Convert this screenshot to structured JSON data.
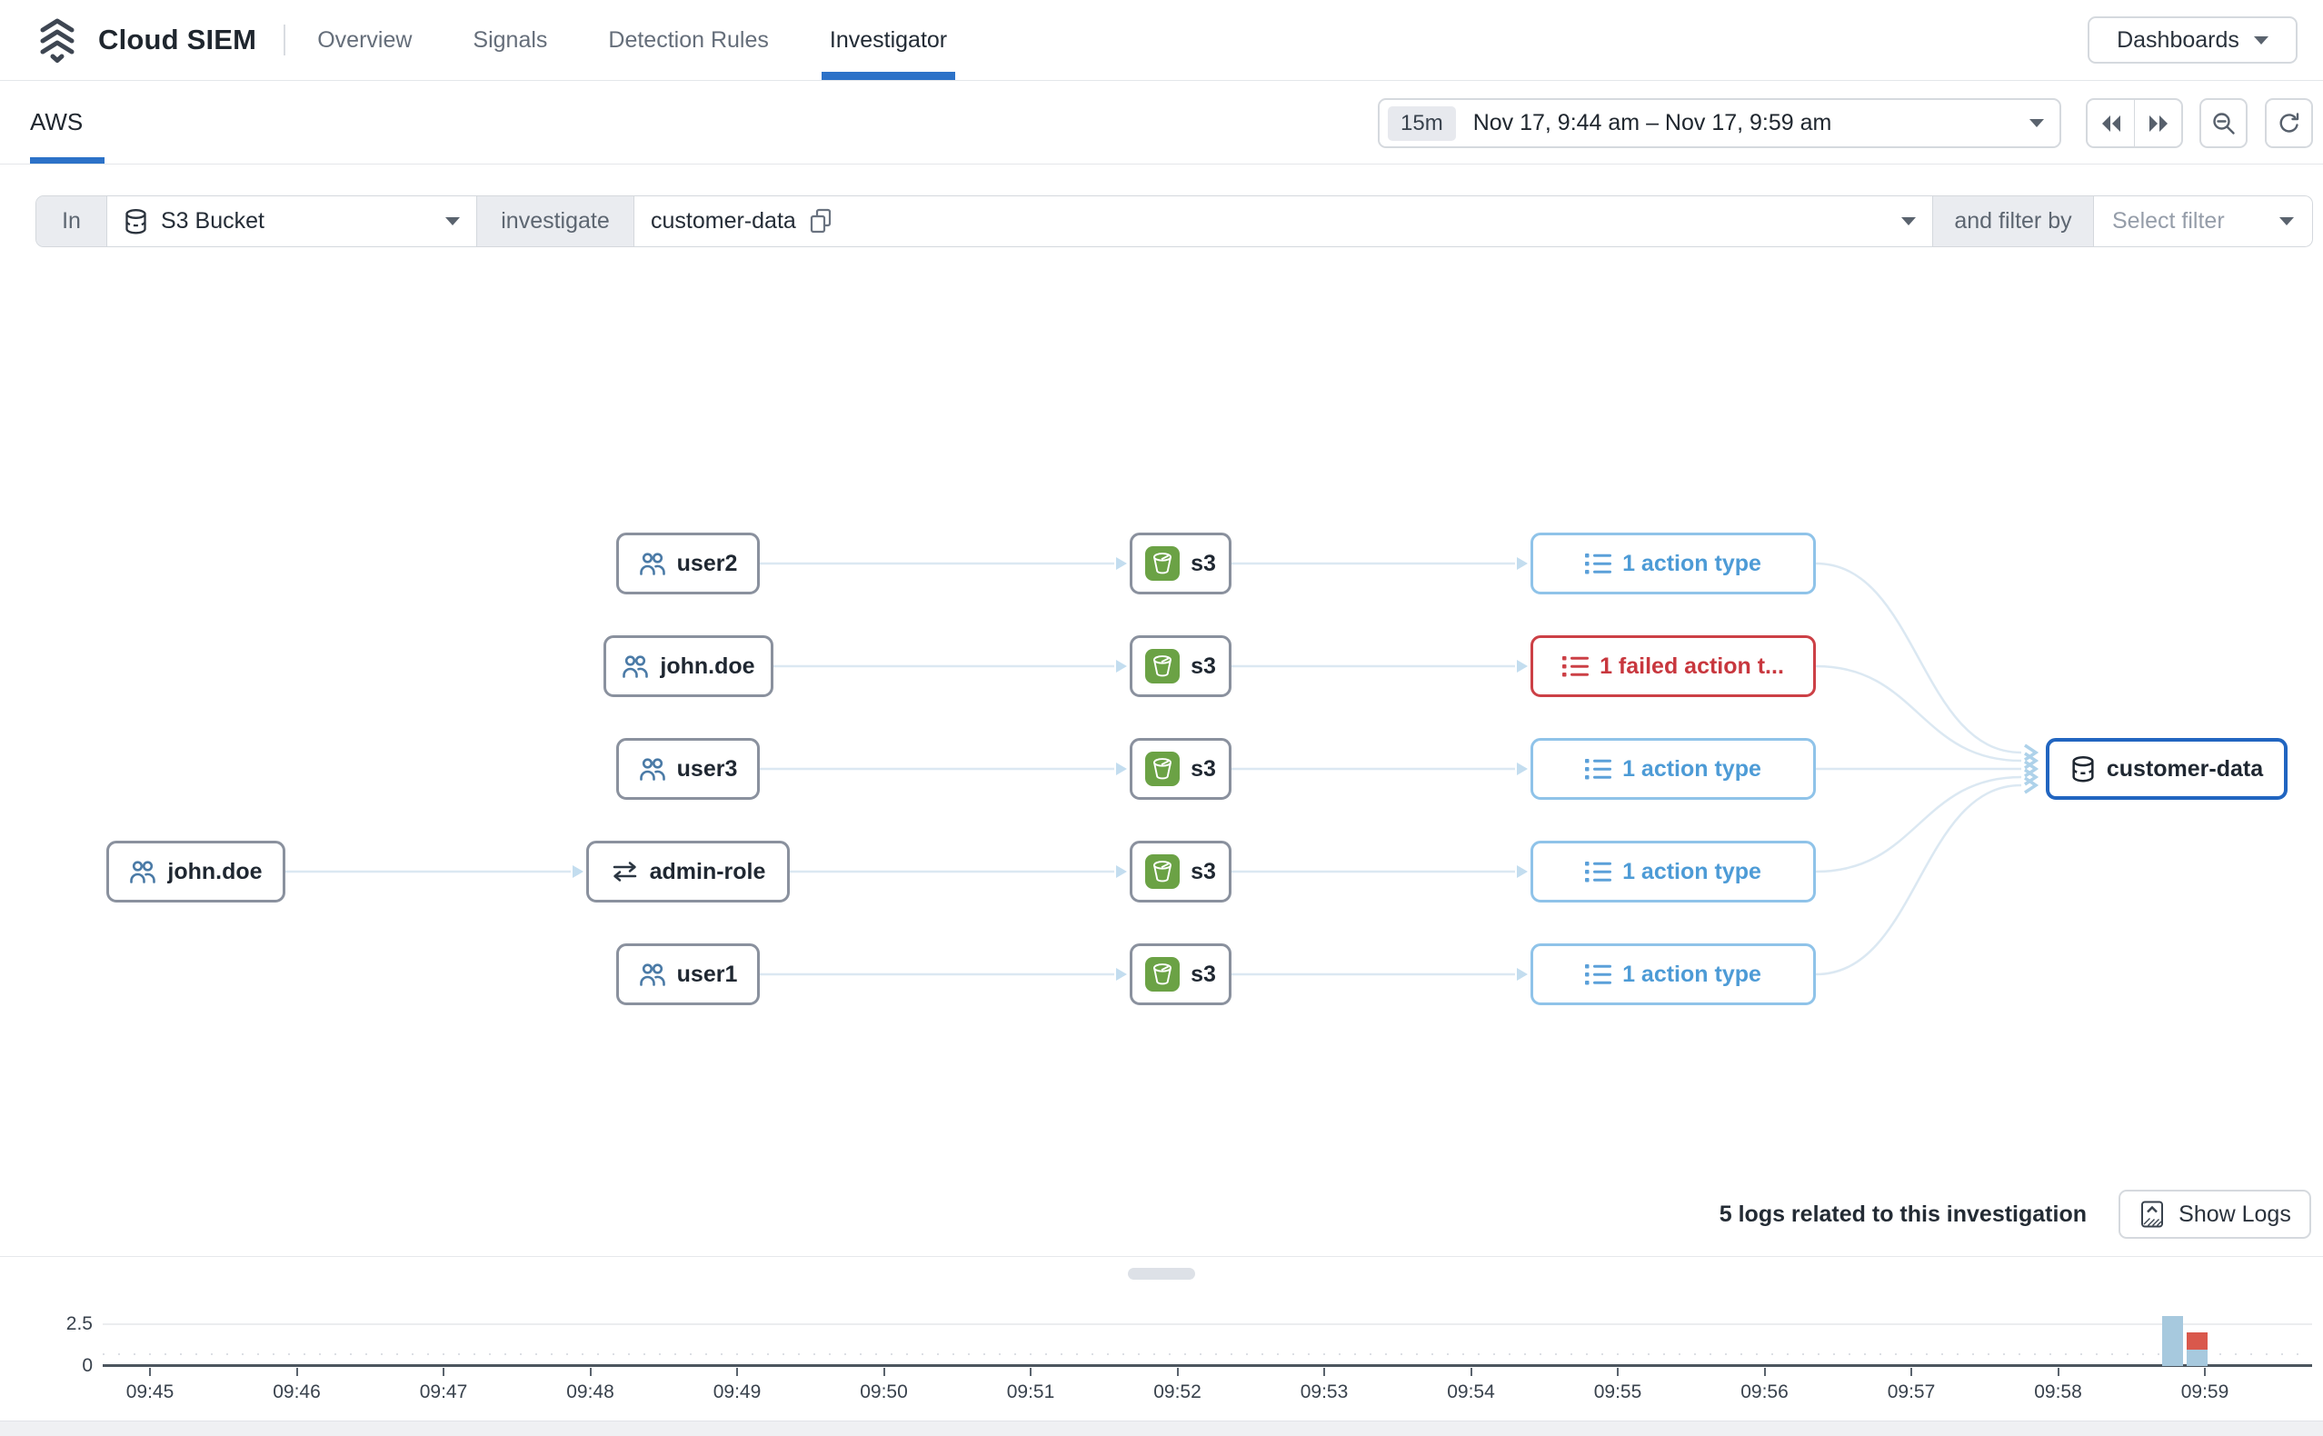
{
  "header": {
    "title": "Cloud SIEM",
    "nav": [
      {
        "label": "Overview",
        "active": false
      },
      {
        "label": "Signals",
        "active": false
      },
      {
        "label": "Detection Rules",
        "active": false
      },
      {
        "label": "Investigator",
        "active": true
      }
    ],
    "dashboards_label": "Dashboards",
    "accent_color": "#2c72c8"
  },
  "toolbar": {
    "source_tab": "AWS",
    "time": {
      "duration": "15m",
      "range": "Nov 17, 9:44 am – Nov 17, 9:59 am"
    }
  },
  "query_bar": {
    "in_label": "In",
    "entity_type": "S3 Bucket",
    "investigate_label": "investigate",
    "entity_value": "customer-data",
    "filter_connector": "and filter by",
    "filter_placeholder": "Select filter"
  },
  "graph": {
    "assumed_role_edge_source": {
      "label": "john.doe",
      "type": "user"
    },
    "rows": [
      {
        "source": {
          "label": "user2",
          "type": "user"
        },
        "service": {
          "label": "s3"
        },
        "action": {
          "label": "1 action type",
          "failed": false
        }
      },
      {
        "source": {
          "label": "john.doe",
          "type": "user"
        },
        "service": {
          "label": "s3"
        },
        "action": {
          "label": "1 failed action t...",
          "failed": true
        }
      },
      {
        "source": {
          "label": "user3",
          "type": "user"
        },
        "service": {
          "label": "s3"
        },
        "action": {
          "label": "1 action type",
          "failed": false
        }
      },
      {
        "source": {
          "label": "admin-role",
          "type": "role"
        },
        "service": {
          "label": "s3"
        },
        "action": {
          "label": "1 action type",
          "failed": false
        }
      },
      {
        "source": {
          "label": "user1",
          "type": "user"
        },
        "service": {
          "label": "s3"
        },
        "action": {
          "label": "1 action type",
          "failed": false
        }
      }
    ],
    "target": {
      "label": "customer-data",
      "type": "s3-bucket"
    },
    "status_colors": {
      "normal": "#4d9bd6",
      "failed": "#cc4046",
      "selected": "#2165c0"
    }
  },
  "logs": {
    "summary": "5 logs related to this investigation",
    "show_logs_label": "Show Logs"
  },
  "chart_data": {
    "type": "bar",
    "title": "",
    "x_tick_labels": [
      "09:45",
      "09:46",
      "09:47",
      "09:48",
      "09:49",
      "09:50",
      "09:51",
      "09:52",
      "09:53",
      "09:54",
      "09:55",
      "09:56",
      "09:57",
      "09:58",
      "09:59"
    ],
    "x_minutes_per_tick": 1,
    "y_axis": {
      "ticks": [
        0,
        2.5
      ],
      "max": 3.5
    },
    "grid": true,
    "legend": false,
    "series": [
      {
        "name": "actions",
        "color": "#a7c9de"
      },
      {
        "name": "failed actions",
        "color": "#d9584c"
      }
    ],
    "bars": [
      {
        "near_tick": "09:59",
        "x_offset_minutes": 13.78,
        "segments": [
          {
            "series": "actions",
            "value": 3
          }
        ]
      },
      {
        "near_tick": "09:59",
        "x_offset_minutes": 13.95,
        "segments": [
          {
            "series": "actions",
            "value": 1
          },
          {
            "series": "failed actions",
            "value": 1
          }
        ]
      }
    ]
  }
}
